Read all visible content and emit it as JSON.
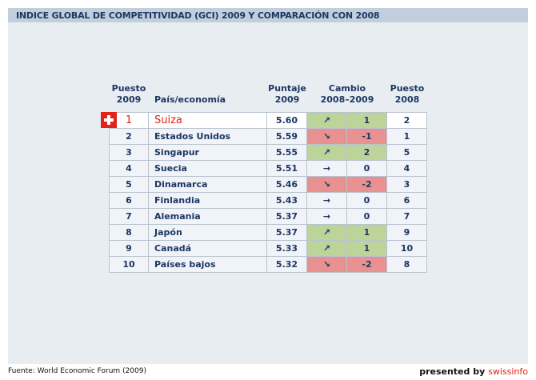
{
  "title": "INDICE GLOBAL DE COMPETITIVIDAD (GCI) 2009 Y COMPARACIÓN CON 2008",
  "headers": {
    "rank2009": [
      "Puesto",
      "2009"
    ],
    "country": "País/economía",
    "score": [
      "Puntaje",
      "2009"
    ],
    "change": [
      "Cambio",
      "2008–2009"
    ],
    "rank2008": [
      "Puesto",
      "2008"
    ]
  },
  "rows": [
    {
      "rank": "1",
      "country": "Suiza",
      "score": "5.60",
      "arrow": "↗",
      "change": "1",
      "prev": "2",
      "trend": "up"
    },
    {
      "rank": "2",
      "country": "Estados Unidos",
      "score": "5.59",
      "arrow": "↘",
      "change": "-1",
      "prev": "1",
      "trend": "down"
    },
    {
      "rank": "3",
      "country": "Singapur",
      "score": "5.55",
      "arrow": "↗",
      "change": "2",
      "prev": "5",
      "trend": "up"
    },
    {
      "rank": "4",
      "country": "Suecia",
      "score": "5.51",
      "arrow": "→",
      "change": "0",
      "prev": "4",
      "trend": "same"
    },
    {
      "rank": "5",
      "country": "Dinamarca",
      "score": "5.46",
      "arrow": "↘",
      "change": "-2",
      "prev": "3",
      "trend": "down"
    },
    {
      "rank": "6",
      "country": "Finlandia",
      "score": "5.43",
      "arrow": "→",
      "change": "0",
      "prev": "6",
      "trend": "same"
    },
    {
      "rank": "7",
      "country": "Alemania",
      "score": "5.37",
      "arrow": "→",
      "change": "0",
      "prev": "7",
      "trend": "same"
    },
    {
      "rank": "8",
      "country": "Japón",
      "score": "5.37",
      "arrow": "↗",
      "change": "1",
      "prev": "9",
      "trend": "up"
    },
    {
      "rank": "9",
      "country": "Canadá",
      "score": "5.33",
      "arrow": "↗",
      "change": "1",
      "prev": "10",
      "trend": "up"
    },
    {
      "rank": "10",
      "country": "Países bajos",
      "score": "5.32",
      "arrow": "↘",
      "change": "-2",
      "prev": "8",
      "trend": "down"
    }
  ],
  "source": "Fuente: World Economic Forum (2009)",
  "presented": {
    "prefix": "presented by ",
    "brand": "swissinfo"
  },
  "colors": {
    "up": "#bcd39a",
    "down": "#e99190",
    "accent": "#e2231a"
  }
}
